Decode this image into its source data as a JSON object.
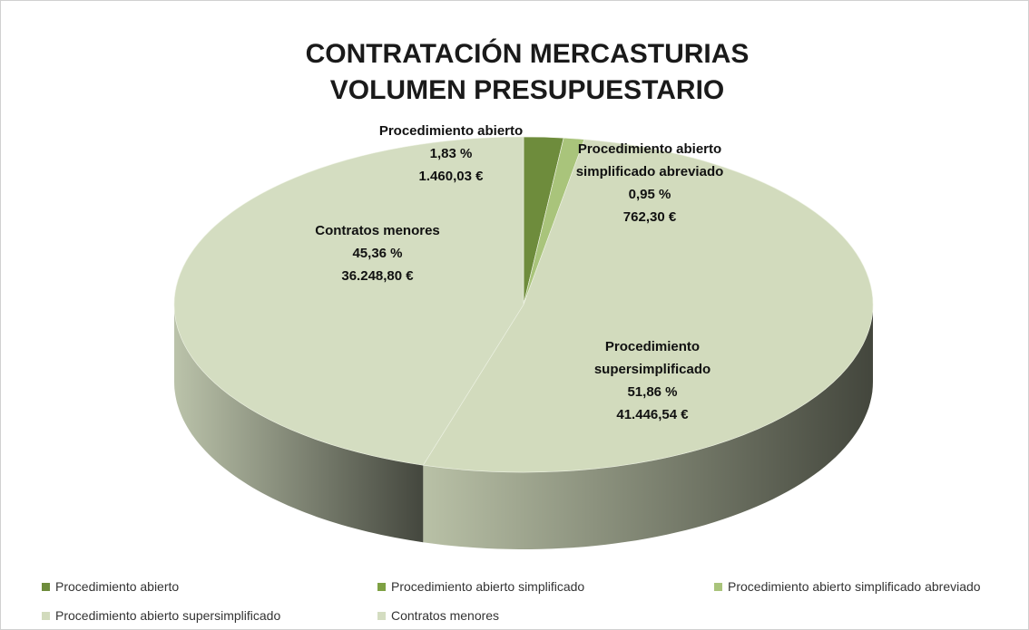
{
  "chart_data": {
    "type": "pie3d",
    "title": [
      "CONTRATACIÓN  MERCASTURIAS",
      "VOLUMEN  PRESUPUESTARIO"
    ],
    "categories": [
      "Procedimiento abierto",
      "Procedimiento abierto simplificado",
      "Procedimiento abierto simplificado abreviado",
      "Procedimiento abierto supersimplificado",
      "Contratos menores"
    ],
    "values": [
      1.83,
      0,
      0.95,
      51.86,
      45.36
    ],
    "value_labels": [
      "1,83 %",
      null,
      "0,95 %",
      "51,86 %",
      "45,36 %"
    ],
    "label_names": [
      "Procedimiento abierto",
      null,
      "Procedimiento abierto simplificado abreviado",
      "Procedimiento supersimplificado",
      "Contratos menores"
    ],
    "amounts": [
      1460.03,
      null,
      762.3,
      41446.54,
      36248.8
    ],
    "amount_labels": [
      "1.460,03 €",
      null,
      "762,30 €",
      "41.446,54 €",
      "36.248,80 €"
    ],
    "colors": [
      "#6e8c3c",
      "#7ea143",
      "#a9c47b",
      "#d2dbbd",
      "#d4ddc1"
    ],
    "legend": "bottom"
  }
}
